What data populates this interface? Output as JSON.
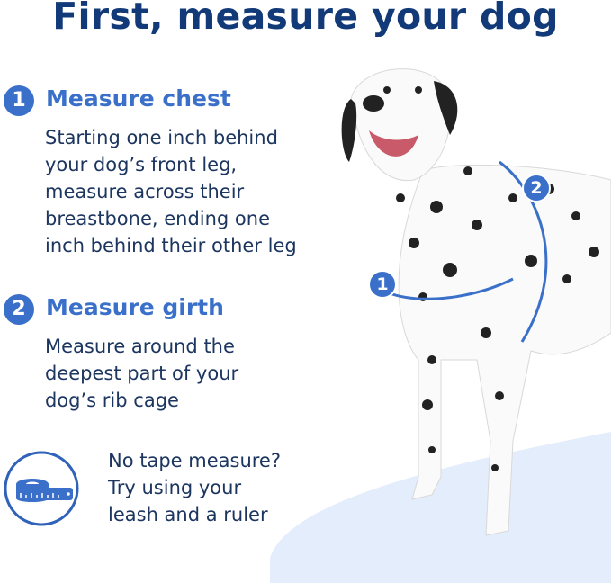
{
  "title": "First, measure your dog",
  "steps": [
    {
      "number": "1",
      "heading": "Measure chest",
      "text": "Starting one inch behind\nyour dog’s front leg,\nmeasure across their\nbreastbone, ending one\ninch behind their other leg"
    },
    {
      "number": "2",
      "heading": "Measure girth",
      "text": "Measure around the\ndeepest part of your\ndog’s rib cage"
    }
  ],
  "tip": {
    "icon": "tape-measure-icon",
    "text": "No tape measure?\nTry using your\nleash and a ruler"
  },
  "diagram_labels": {
    "chest": "1",
    "girth": "2"
  },
  "colors": {
    "title": "#123a78",
    "accent": "#3a70c9",
    "body_text": "#1d3660",
    "floor": "#e4edfb"
  }
}
